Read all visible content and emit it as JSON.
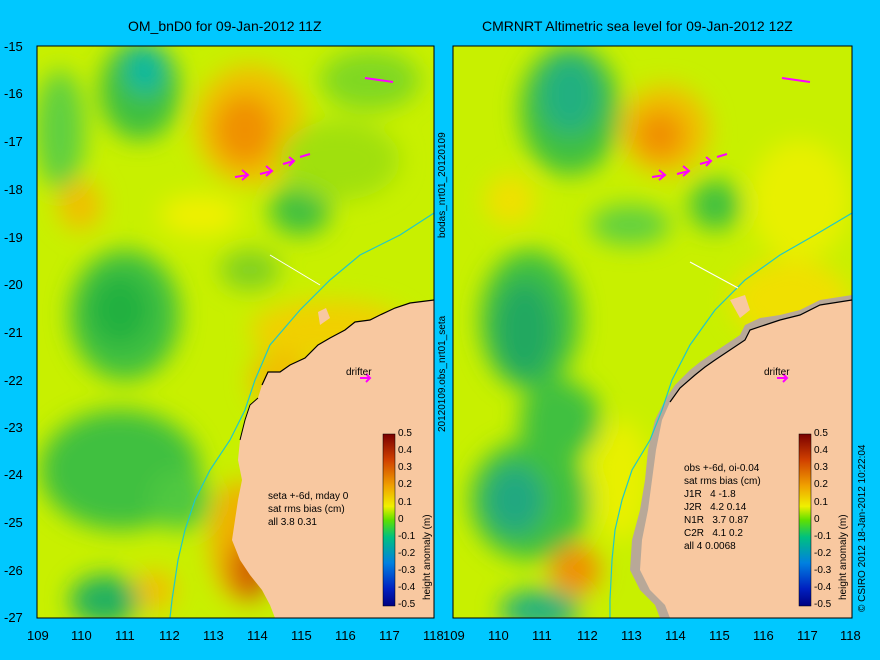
{
  "panels": [
    {
      "title": "OM_bnD0 for 09-Jan-2012 11Z",
      "stats_lines": [
        "seta +-6d, mday 0",
        "sat rms bias (cm)",
        "all 3.8 0.31"
      ],
      "drifter_label": "drifter"
    },
    {
      "title": "CMRNRT Altimetric sea level  for 09-Jan-2012 12Z",
      "stats_lines": [
        "obs +-6d, oi-0.04",
        "sat rms bias (cm)",
        "J1R   4 -1.8",
        "J2R   4.2 0.14",
        "N1R   3.7 0.87",
        "C2R   4.1 0.2",
        "all 4 0.0068"
      ],
      "drifter_label": "drifter"
    }
  ],
  "y_ticks": [
    "-15",
    "-16",
    "-17",
    "-18",
    "-19",
    "-20",
    "-21",
    "-22",
    "-23",
    "-24",
    "-25",
    "-26",
    "-27"
  ],
  "x_ticks_left": [
    "109",
    "110",
    "111",
    "112",
    "113",
    "114",
    "115",
    "116",
    "117",
    "118"
  ],
  "x_ticks_right": [
    "109",
    "110",
    "111",
    "112",
    "113",
    "114",
    "115",
    "116",
    "117",
    "118"
  ],
  "colorbar": {
    "label": "height anomaly (m)",
    "ticks": [
      "0.5",
      "0.4",
      "0.3",
      "0.2",
      "0.1",
      "0",
      "-0.1",
      "-0.2",
      "-0.3",
      "-0.4",
      "-0.5"
    ]
  },
  "middle_labels": [
    "20120109.obs_nrt01_seta",
    "bodas_nrt01_20120109"
  ],
  "copyright": "© CSIRO 2012   18-Jan-2012 10:22:04",
  "colors": {
    "background": "#00c8ff",
    "land": "#f8c8a0",
    "sea_base": "#b8f000",
    "high": "#f0a000",
    "low": "#30c030"
  }
}
